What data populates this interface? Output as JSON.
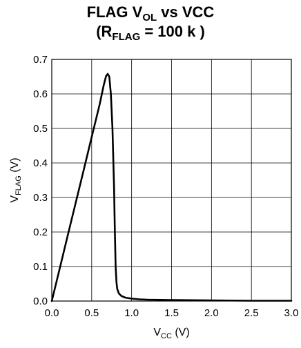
{
  "chart_data": {
    "type": "line",
    "title": {
      "line1": {
        "main": "FLAG V",
        "sub": "OL",
        "rest": " vs VCC"
      },
      "line2": {
        "open": "(R",
        "sub": "FLAG",
        "rest": " = 100 k   )"
      }
    },
    "xlabel": {
      "main": "V",
      "sub": "CC",
      "unit": " (V)"
    },
    "ylabel": {
      "main": "V",
      "sub": "FLAG",
      "unit": " (V)"
    },
    "xlim": [
      0,
      3
    ],
    "ylim": [
      0,
      0.7
    ],
    "xticks": [
      "0.0",
      "0.5",
      "1.0",
      "1.5",
      "2.0",
      "2.5",
      "3.0"
    ],
    "yticks": [
      "0.0",
      "0.1",
      "0.2",
      "0.3",
      "0.4",
      "0.5",
      "0.6",
      "0.7"
    ],
    "grid": true,
    "series": [
      {
        "color": "#000000",
        "x": [
          0.0,
          0.1,
          0.2,
          0.3,
          0.4,
          0.5,
          0.6,
          0.65,
          0.68,
          0.7,
          0.72,
          0.74,
          0.76,
          0.78,
          0.79,
          0.8,
          0.81,
          0.82,
          0.84,
          0.87,
          0.92,
          1.0,
          1.1,
          1.2,
          1.5,
          2.0,
          2.5,
          3.0
        ],
        "y": [
          0.0,
          0.095,
          0.19,
          0.285,
          0.38,
          0.475,
          0.57,
          0.625,
          0.652,
          0.658,
          0.65,
          0.6,
          0.5,
          0.33,
          0.2,
          0.1,
          0.055,
          0.035,
          0.022,
          0.015,
          0.01,
          0.007,
          0.005,
          0.004,
          0.003,
          0.002,
          0.001,
          0.001
        ]
      }
    ]
  }
}
